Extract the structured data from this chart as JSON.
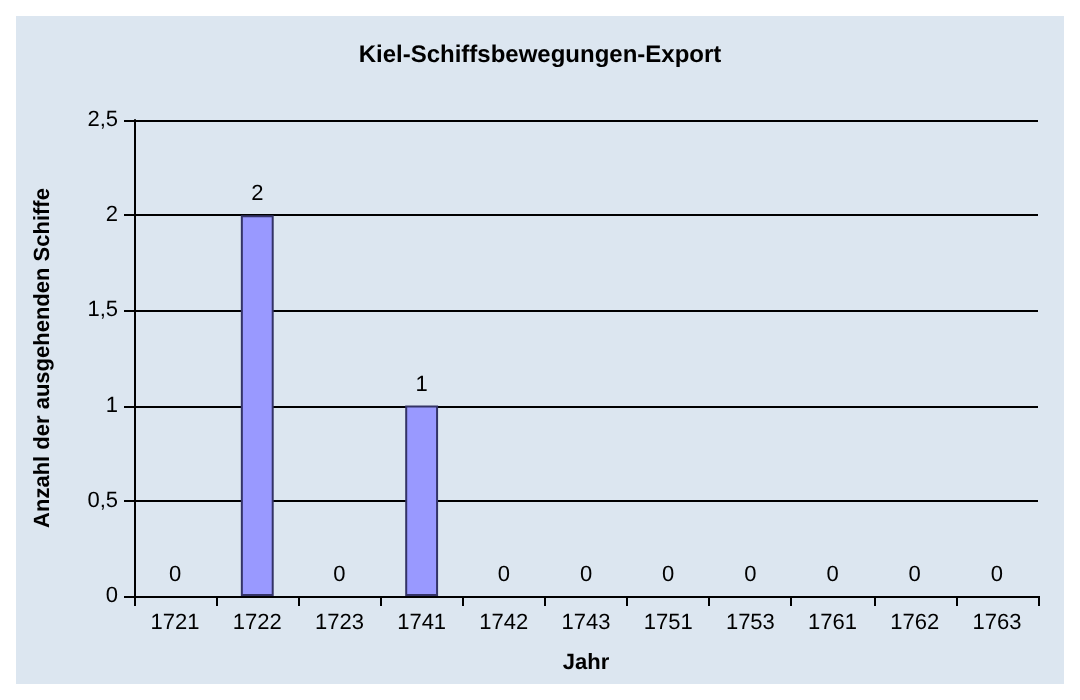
{
  "chart_data": {
    "type": "bar",
    "title": "Kiel-Schiffsbewegungen-Export",
    "xlabel": "Jahr",
    "ylabel": "Anzahl der ausgehenden Schiffe",
    "categories": [
      "1721",
      "1722",
      "1723",
      "1741",
      "1742",
      "1743",
      "1751",
      "1753",
      "1761",
      "1762",
      "1763"
    ],
    "values": [
      0,
      2,
      0,
      1,
      0,
      0,
      0,
      0,
      0,
      0,
      0
    ],
    "color": "#9999ff",
    "ylim": [
      0,
      2.5
    ],
    "yticks": [
      0,
      {
        "value": 0.5,
        "label": "0,5"
      },
      1,
      {
        "value": 1.5,
        "label": "1,5"
      },
      2,
      {
        "value": 2.5,
        "label": "2,5"
      }
    ],
    "grid": "y",
    "data_labels": true
  }
}
